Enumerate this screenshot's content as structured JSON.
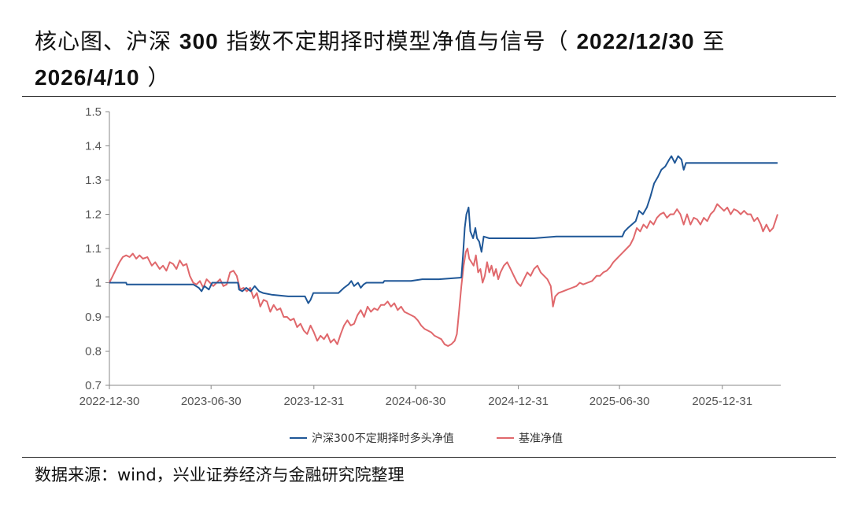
{
  "title": {
    "part1": "核心图、沪深",
    "num": "300",
    "part2": "指数不定期择时模型净值与信号（",
    "date_start": "2022/12/30",
    "to": "至",
    "date_end": "2026/4/10",
    "close": "）"
  },
  "source": "数据来源：wind，兴业证券经济与金融研究院整理",
  "colors": {
    "strategy": "#1f5797",
    "benchmark": "#e0686c",
    "axis": "#888888",
    "rule": "#222222"
  },
  "chart_data": {
    "type": "line",
    "ylim": [
      0.7,
      1.5
    ],
    "yticks": [
      "1.5",
      "1.4",
      "1.3",
      "1.2",
      "1.1",
      "1",
      "0.9",
      "0.8",
      "0.7"
    ],
    "xlim": [
      0,
      1196
    ],
    "xticks": [
      {
        "label": "2022-12-30",
        "day": 0
      },
      {
        "label": "2023-06-30",
        "day": 182
      },
      {
        "label": "2023-12-31",
        "day": 366
      },
      {
        "label": "2024-06-30",
        "day": 548
      },
      {
        "label": "2024-12-31",
        "day": 732
      },
      {
        "label": "2025-06-30",
        "day": 913
      },
      {
        "label": "2025-12-31",
        "day": 1097
      }
    ],
    "series": [
      {
        "name": "沪深300不定期择时多头净值",
        "points": [
          [
            0,
            1.0
          ],
          [
            30,
            1.0
          ],
          [
            31,
            0.995
          ],
          [
            150,
            0.995
          ],
          [
            155,
            0.99
          ],
          [
            160,
            0.985
          ],
          [
            165,
            0.975
          ],
          [
            170,
            0.99
          ],
          [
            178,
            0.98
          ],
          [
            184,
            1.0
          ],
          [
            230,
            1.0
          ],
          [
            232,
            0.98
          ],
          [
            238,
            0.975
          ],
          [
            245,
            0.985
          ],
          [
            253,
            0.975
          ],
          [
            260,
            0.99
          ],
          [
            268,
            0.975
          ],
          [
            275,
            0.97
          ],
          [
            290,
            0.965
          ],
          [
            320,
            0.96
          ],
          [
            350,
            0.96
          ],
          [
            356,
            0.94
          ],
          [
            360,
            0.95
          ],
          [
            365,
            0.97
          ],
          [
            410,
            0.97
          ],
          [
            420,
            0.985
          ],
          [
            428,
            0.995
          ],
          [
            433,
            1.005
          ],
          [
            438,
            0.99
          ],
          [
            445,
            1.0
          ],
          [
            450,
            0.985
          ],
          [
            455,
            0.995
          ],
          [
            460,
            1.0
          ],
          [
            470,
            1.0
          ],
          [
            490,
            1.0
          ],
          [
            492,
            1.005
          ],
          [
            540,
            1.005
          ],
          [
            560,
            1.01
          ],
          [
            590,
            1.01
          ],
          [
            630,
            1.015
          ],
          [
            633,
            1.08
          ],
          [
            636,
            1.16
          ],
          [
            639,
            1.2
          ],
          [
            643,
            1.22
          ],
          [
            646,
            1.15
          ],
          [
            651,
            1.13
          ],
          [
            655,
            1.16
          ],
          [
            658,
            1.13
          ],
          [
            662,
            1.12
          ],
          [
            666,
            1.09
          ],
          [
            670,
            1.135
          ],
          [
            680,
            1.13
          ],
          [
            700,
            1.13
          ],
          [
            702,
            1.13
          ],
          [
            760,
            1.13
          ],
          [
            800,
            1.135
          ],
          [
            850,
            1.135
          ],
          [
            880,
            1.135
          ],
          [
            910,
            1.135
          ],
          [
            918,
            1.135
          ],
          [
            922,
            1.15
          ],
          [
            928,
            1.16
          ],
          [
            935,
            1.17
          ],
          [
            942,
            1.18
          ],
          [
            948,
            1.21
          ],
          [
            955,
            1.2
          ],
          [
            962,
            1.22
          ],
          [
            968,
            1.25
          ],
          [
            975,
            1.29
          ],
          [
            982,
            1.31
          ],
          [
            988,
            1.33
          ],
          [
            995,
            1.34
          ],
          [
            1002,
            1.36
          ],
          [
            1006,
            1.37
          ],
          [
            1012,
            1.35
          ],
          [
            1018,
            1.37
          ],
          [
            1024,
            1.36
          ],
          [
            1028,
            1.33
          ],
          [
            1032,
            1.35
          ],
          [
            1040,
            1.35
          ],
          [
            1100,
            1.35
          ],
          [
            1196,
            1.35
          ]
        ]
      },
      {
        "name": "基准净值",
        "points": [
          [
            0,
            1.0
          ],
          [
            6,
            1.02
          ],
          [
            12,
            1.04
          ],
          [
            18,
            1.06
          ],
          [
            24,
            1.075
          ],
          [
            30,
            1.08
          ],
          [
            36,
            1.075
          ],
          [
            42,
            1.085
          ],
          [
            48,
            1.07
          ],
          [
            54,
            1.08
          ],
          [
            60,
            1.07
          ],
          [
            68,
            1.075
          ],
          [
            76,
            1.05
          ],
          [
            82,
            1.06
          ],
          [
            90,
            1.04
          ],
          [
            96,
            1.05
          ],
          [
            102,
            1.035
          ],
          [
            108,
            1.06
          ],
          [
            114,
            1.055
          ],
          [
            120,
            1.04
          ],
          [
            126,
            1.065
          ],
          [
            132,
            1.05
          ],
          [
            138,
            1.055
          ],
          [
            144,
            1.02
          ],
          [
            150,
            1.0
          ],
          [
            156,
            0.995
          ],
          [
            162,
            1.005
          ],
          [
            168,
            0.985
          ],
          [
            174,
            1.01
          ],
          [
            180,
            1.0
          ],
          [
            186,
            0.99
          ],
          [
            192,
            1.0
          ],
          [
            198,
            1.01
          ],
          [
            204,
            0.99
          ],
          [
            210,
            0.995
          ],
          [
            216,
            1.03
          ],
          [
            222,
            1.035
          ],
          [
            228,
            1.02
          ],
          [
            234,
            0.98
          ],
          [
            240,
            0.985
          ],
          [
            246,
            0.975
          ],
          [
            252,
            0.985
          ],
          [
            258,
            0.955
          ],
          [
            264,
            0.97
          ],
          [
            270,
            0.93
          ],
          [
            276,
            0.95
          ],
          [
            282,
            0.945
          ],
          [
            288,
            0.915
          ],
          [
            294,
            0.935
          ],
          [
            300,
            0.92
          ],
          [
            306,
            0.925
          ],
          [
            312,
            0.9
          ],
          [
            318,
            0.9
          ],
          [
            324,
            0.89
          ],
          [
            330,
            0.895
          ],
          [
            336,
            0.87
          ],
          [
            342,
            0.88
          ],
          [
            348,
            0.86
          ],
          [
            354,
            0.85
          ],
          [
            360,
            0.875
          ],
          [
            366,
            0.855
          ],
          [
            372,
            0.83
          ],
          [
            378,
            0.845
          ],
          [
            384,
            0.835
          ],
          [
            390,
            0.85
          ],
          [
            396,
            0.825
          ],
          [
            402,
            0.835
          ],
          [
            408,
            0.82
          ],
          [
            414,
            0.85
          ],
          [
            420,
            0.875
          ],
          [
            426,
            0.89
          ],
          [
            432,
            0.875
          ],
          [
            438,
            0.88
          ],
          [
            444,
            0.905
          ],
          [
            450,
            0.92
          ],
          [
            456,
            0.9
          ],
          [
            462,
            0.93
          ],
          [
            468,
            0.915
          ],
          [
            474,
            0.925
          ],
          [
            480,
            0.92
          ],
          [
            486,
            0.935
          ],
          [
            492,
            0.935
          ],
          [
            498,
            0.945
          ],
          [
            504,
            0.93
          ],
          [
            510,
            0.94
          ],
          [
            516,
            0.92
          ],
          [
            522,
            0.93
          ],
          [
            528,
            0.915
          ],
          [
            534,
            0.91
          ],
          [
            540,
            0.905
          ],
          [
            546,
            0.9
          ],
          [
            552,
            0.89
          ],
          [
            558,
            0.875
          ],
          [
            564,
            0.865
          ],
          [
            570,
            0.86
          ],
          [
            576,
            0.855
          ],
          [
            582,
            0.845
          ],
          [
            588,
            0.84
          ],
          [
            594,
            0.835
          ],
          [
            600,
            0.82
          ],
          [
            606,
            0.815
          ],
          [
            612,
            0.82
          ],
          [
            618,
            0.83
          ],
          [
            622,
            0.85
          ],
          [
            626,
            0.92
          ],
          [
            630,
            0.99
          ],
          [
            634,
            1.05
          ],
          [
            638,
            1.09
          ],
          [
            641,
            1.1
          ],
          [
            644,
            1.07
          ],
          [
            648,
            1.06
          ],
          [
            652,
            1.05
          ],
          [
            656,
            1.08
          ],
          [
            660,
            1.03
          ],
          [
            664,
            1.04
          ],
          [
            668,
            1.0
          ],
          [
            672,
            1.02
          ],
          [
            676,
            1.06
          ],
          [
            680,
            1.03
          ],
          [
            684,
            1.05
          ],
          [
            688,
            1.02
          ],
          [
            692,
            1.04
          ],
          [
            696,
            1.01
          ],
          [
            700,
            1.03
          ],
          [
            706,
            1.05
          ],
          [
            712,
            1.06
          ],
          [
            718,
            1.04
          ],
          [
            724,
            1.02
          ],
          [
            730,
            1.0
          ],
          [
            736,
            0.99
          ],
          [
            742,
            1.01
          ],
          [
            748,
            1.03
          ],
          [
            754,
            1.02
          ],
          [
            760,
            1.04
          ],
          [
            766,
            1.05
          ],
          [
            772,
            1.03
          ],
          [
            778,
            1.02
          ],
          [
            784,
            1.01
          ],
          [
            790,
            0.99
          ],
          [
            794,
            0.93
          ],
          [
            798,
            0.96
          ],
          [
            804,
            0.97
          ],
          [
            812,
            0.975
          ],
          [
            820,
            0.98
          ],
          [
            828,
            0.985
          ],
          [
            836,
            0.99
          ],
          [
            842,
            1.0
          ],
          [
            848,
            0.995
          ],
          [
            856,
            1.0
          ],
          [
            864,
            1.005
          ],
          [
            872,
            1.02
          ],
          [
            878,
            1.02
          ],
          [
            884,
            1.03
          ],
          [
            890,
            1.035
          ],
          [
            896,
            1.045
          ],
          [
            902,
            1.06
          ],
          [
            908,
            1.07
          ],
          [
            914,
            1.08
          ],
          [
            920,
            1.09
          ],
          [
            926,
            1.1
          ],
          [
            932,
            1.11
          ],
          [
            938,
            1.13
          ],
          [
            944,
            1.16
          ],
          [
            950,
            1.15
          ],
          [
            956,
            1.17
          ],
          [
            962,
            1.16
          ],
          [
            968,
            1.18
          ],
          [
            974,
            1.17
          ],
          [
            980,
            1.19
          ],
          [
            986,
            1.2
          ],
          [
            992,
            1.205
          ],
          [
            998,
            1.19
          ],
          [
            1004,
            1.2
          ],
          [
            1010,
            1.2
          ],
          [
            1016,
            1.215
          ],
          [
            1022,
            1.2
          ],
          [
            1028,
            1.17
          ],
          [
            1034,
            1.2
          ],
          [
            1040,
            1.17
          ],
          [
            1046,
            1.19
          ],
          [
            1052,
            1.185
          ],
          [
            1058,
            1.17
          ],
          [
            1064,
            1.19
          ],
          [
            1070,
            1.18
          ],
          [
            1076,
            1.2
          ],
          [
            1082,
            1.21
          ],
          [
            1088,
            1.23
          ],
          [
            1094,
            1.22
          ],
          [
            1100,
            1.21
          ],
          [
            1106,
            1.22
          ],
          [
            1112,
            1.2
          ],
          [
            1118,
            1.215
          ],
          [
            1124,
            1.21
          ],
          [
            1130,
            1.2
          ],
          [
            1136,
            1.21
          ],
          [
            1142,
            1.2
          ],
          [
            1148,
            1.2
          ],
          [
            1154,
            1.18
          ],
          [
            1160,
            1.19
          ],
          [
            1166,
            1.17
          ],
          [
            1170,
            1.15
          ],
          [
            1176,
            1.17
          ],
          [
            1182,
            1.15
          ],
          [
            1188,
            1.16
          ],
          [
            1194,
            1.19
          ],
          [
            1196,
            1.2
          ]
        ]
      }
    ],
    "legend": [
      "沪深300不定期择时多头净值",
      "基准净值"
    ],
    "legend_position": "bottom-center",
    "grid": false
  }
}
